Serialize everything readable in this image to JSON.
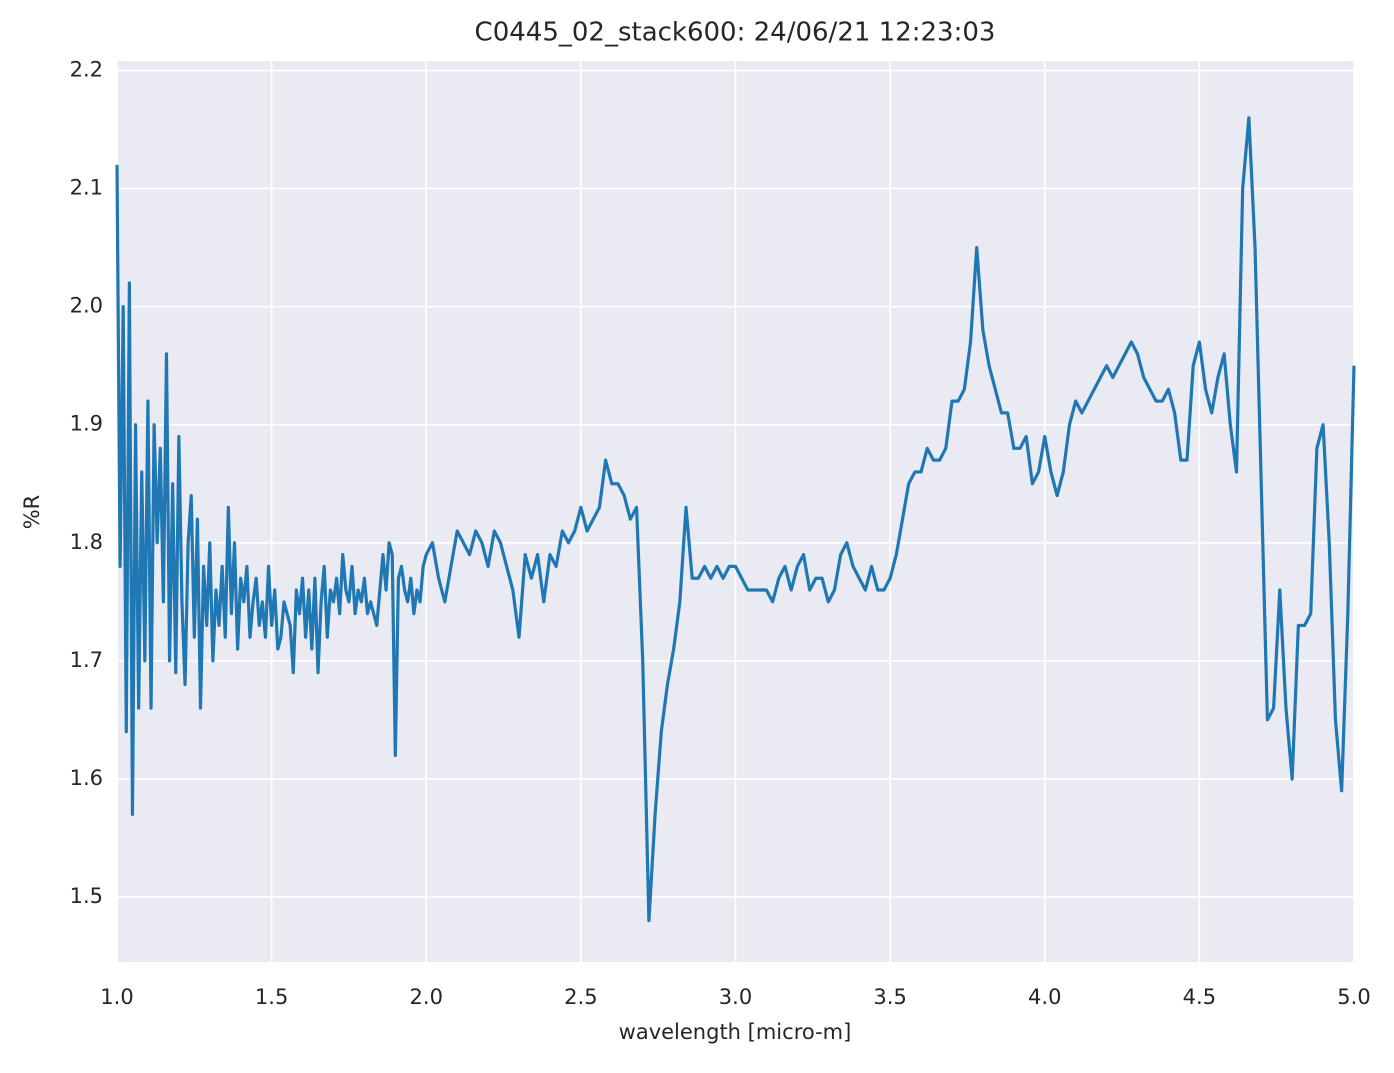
{
  "chart_data": {
    "type": "line",
    "title": "C0445_02_stack600:  24/06/21 12:23:03",
    "xlabel": "wavelength [micro-m]",
    "ylabel": "%R",
    "xlim": [
      1.0,
      5.0
    ],
    "ylim": [
      1.445,
      2.208
    ],
    "xticks": [
      {
        "value": 1.0,
        "label": "1.0"
      },
      1.5,
      {
        "value": 2.0,
        "label": "2.0"
      },
      2.5,
      {
        "value": 3.0,
        "label": "3.0"
      },
      3.5,
      {
        "value": 4.0,
        "label": "4.0"
      },
      4.5,
      {
        "value": 5.0,
        "label": "5.0"
      }
    ],
    "yticks": [
      1.5,
      1.6,
      1.7,
      1.8,
      1.9,
      {
        "value": 2.0,
        "label": "2.0"
      },
      2.1,
      2.2
    ],
    "grid": true,
    "series": [
      {
        "color": "#1f77b4",
        "x": [
          1.0,
          1.01,
          1.02,
          1.03,
          1.04,
          1.05,
          1.06,
          1.07,
          1.08,
          1.09,
          1.1,
          1.11,
          1.12,
          1.13,
          1.14,
          1.15,
          1.16,
          1.17,
          1.18,
          1.19,
          1.2,
          1.21,
          1.22,
          1.23,
          1.24,
          1.25,
          1.26,
          1.27,
          1.28,
          1.29,
          1.3,
          1.31,
          1.32,
          1.33,
          1.34,
          1.35,
          1.36,
          1.37,
          1.38,
          1.39,
          1.4,
          1.41,
          1.42,
          1.43,
          1.44,
          1.45,
          1.46,
          1.47,
          1.48,
          1.49,
          1.5,
          1.51,
          1.52,
          1.53,
          1.54,
          1.55,
          1.56,
          1.57,
          1.58,
          1.59,
          1.6,
          1.61,
          1.62,
          1.63,
          1.64,
          1.65,
          1.66,
          1.67,
          1.68,
          1.69,
          1.7,
          1.71,
          1.72,
          1.73,
          1.74,
          1.75,
          1.76,
          1.77,
          1.78,
          1.79,
          1.8,
          1.81,
          1.82,
          1.83,
          1.84,
          1.85,
          1.86,
          1.87,
          1.88,
          1.89,
          1.9,
          1.91,
          1.92,
          1.93,
          1.94,
          1.95,
          1.96,
          1.97,
          1.98,
          1.99,
          2.0,
          2.02,
          2.04,
          2.06,
          2.08,
          2.1,
          2.12,
          2.14,
          2.16,
          2.18,
          2.2,
          2.22,
          2.24,
          2.26,
          2.28,
          2.3,
          2.32,
          2.34,
          2.36,
          2.38,
          2.4,
          2.42,
          2.44,
          2.46,
          2.48,
          2.5,
          2.52,
          2.54,
          2.56,
          2.58,
          2.6,
          2.62,
          2.64,
          2.66,
          2.68,
          2.7,
          2.72,
          2.74,
          2.76,
          2.78,
          2.8,
          2.82,
          2.84,
          2.86,
          2.88,
          2.9,
          2.92,
          2.94,
          2.96,
          2.98,
          3.0,
          3.02,
          3.04,
          3.06,
          3.08,
          3.1,
          3.12,
          3.14,
          3.16,
          3.18,
          3.2,
          3.22,
          3.24,
          3.26,
          3.28,
          3.3,
          3.32,
          3.34,
          3.36,
          3.38,
          3.4,
          3.42,
          3.44,
          3.46,
          3.48,
          3.5,
          3.52,
          3.54,
          3.56,
          3.58,
          3.6,
          3.62,
          3.64,
          3.66,
          3.68,
          3.7,
          3.72,
          3.74,
          3.76,
          3.78,
          3.8,
          3.82,
          3.84,
          3.86,
          3.88,
          3.9,
          3.92,
          3.94,
          3.96,
          3.98,
          4.0,
          4.02,
          4.04,
          4.06,
          4.08,
          4.1,
          4.12,
          4.14,
          4.16,
          4.18,
          4.2,
          4.22,
          4.24,
          4.26,
          4.28,
          4.3,
          4.32,
          4.34,
          4.36,
          4.38,
          4.4,
          4.42,
          4.44,
          4.46,
          4.48,
          4.5,
          4.52,
          4.54,
          4.56,
          4.58,
          4.6,
          4.62,
          4.64,
          4.66,
          4.68,
          4.7,
          4.72,
          4.74,
          4.76,
          4.78,
          4.8,
          4.82,
          4.84,
          4.86,
          4.88,
          4.9,
          4.92,
          4.94,
          4.96,
          4.98,
          5.0
        ],
        "values": [
          2.12,
          1.78,
          2.0,
          1.64,
          2.02,
          1.57,
          1.9,
          1.66,
          1.86,
          1.7,
          1.92,
          1.66,
          1.9,
          1.8,
          1.88,
          1.75,
          1.96,
          1.7,
          1.85,
          1.69,
          1.89,
          1.75,
          1.68,
          1.8,
          1.84,
          1.72,
          1.82,
          1.66,
          1.78,
          1.73,
          1.8,
          1.7,
          1.76,
          1.73,
          1.78,
          1.72,
          1.83,
          1.74,
          1.8,
          1.71,
          1.77,
          1.75,
          1.78,
          1.72,
          1.75,
          1.77,
          1.73,
          1.75,
          1.72,
          1.78,
          1.73,
          1.76,
          1.71,
          1.72,
          1.75,
          1.74,
          1.73,
          1.69,
          1.76,
          1.74,
          1.77,
          1.72,
          1.76,
          1.71,
          1.77,
          1.69,
          1.75,
          1.78,
          1.72,
          1.76,
          1.75,
          1.77,
          1.74,
          1.79,
          1.76,
          1.75,
          1.78,
          1.74,
          1.76,
          1.75,
          1.77,
          1.74,
          1.75,
          1.74,
          1.73,
          1.76,
          1.79,
          1.76,
          1.8,
          1.79,
          1.62,
          1.77,
          1.78,
          1.76,
          1.75,
          1.77,
          1.74,
          1.76,
          1.75,
          1.78,
          1.79,
          1.8,
          1.77,
          1.75,
          1.78,
          1.81,
          1.8,
          1.79,
          1.81,
          1.8,
          1.78,
          1.81,
          1.8,
          1.78,
          1.76,
          1.72,
          1.79,
          1.77,
          1.79,
          1.75,
          1.79,
          1.78,
          1.81,
          1.8,
          1.81,
          1.83,
          1.81,
          1.82,
          1.83,
          1.87,
          1.85,
          1.85,
          1.84,
          1.82,
          1.83,
          1.7,
          1.48,
          1.57,
          1.64,
          1.68,
          1.71,
          1.75,
          1.83,
          1.77,
          1.77,
          1.78,
          1.77,
          1.78,
          1.77,
          1.78,
          1.78,
          1.77,
          1.76,
          1.76,
          1.76,
          1.76,
          1.75,
          1.77,
          1.78,
          1.76,
          1.78,
          1.79,
          1.76,
          1.77,
          1.77,
          1.75,
          1.76,
          1.79,
          1.8,
          1.78,
          1.77,
          1.76,
          1.78,
          1.76,
          1.76,
          1.77,
          1.79,
          1.82,
          1.85,
          1.86,
          1.86,
          1.88,
          1.87,
          1.87,
          1.88,
          1.92,
          1.92,
          1.93,
          1.97,
          2.05,
          1.98,
          1.95,
          1.93,
          1.91,
          1.91,
          1.88,
          1.88,
          1.89,
          1.85,
          1.86,
          1.89,
          1.86,
          1.84,
          1.86,
          1.9,
          1.92,
          1.91,
          1.92,
          1.93,
          1.94,
          1.95,
          1.94,
          1.95,
          1.96,
          1.97,
          1.96,
          1.94,
          1.93,
          1.92,
          1.92,
          1.93,
          1.91,
          1.87,
          1.87,
          1.95,
          1.97,
          1.93,
          1.91,
          1.94,
          1.96,
          1.9,
          1.86,
          2.1,
          2.16,
          2.05,
          1.85,
          1.65,
          1.66,
          1.76,
          1.66,
          1.6,
          1.73,
          1.73,
          1.74,
          1.88,
          1.9,
          1.8,
          1.65,
          1.59,
          1.74,
          1.95
        ]
      }
    ]
  }
}
